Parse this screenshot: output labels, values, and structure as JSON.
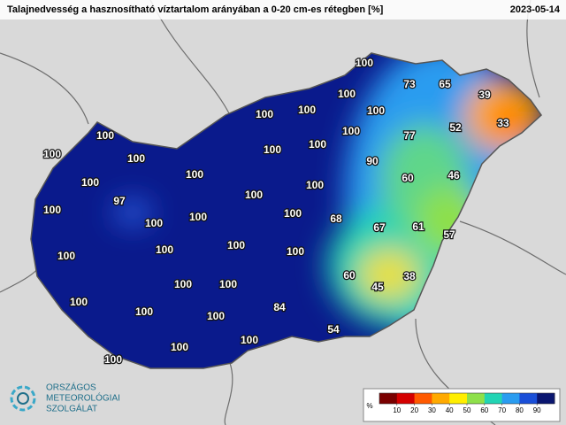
{
  "header": {
    "title": "Talajnedvesség a hasznosítható víztartalom arányában a 0-20 cm-es rétegben [%]",
    "date": "2023-05-14"
  },
  "stations": [
    100,
    73,
    65,
    39,
    100,
    100,
    100,
    100,
    52,
    33,
    100,
    100,
    77,
    100,
    100,
    100,
    100,
    90,
    100,
    100,
    60,
    46,
    100,
    97,
    100,
    100,
    100,
    100,
    100,
    68,
    67,
    61,
    57,
    100,
    100,
    100,
    100,
    60,
    38,
    45,
    100,
    100,
    100,
    84,
    100,
    100,
    54,
    100,
    100,
    100
  ],
  "colorbar": {
    "label": "%",
    "lim": [
      0,
      100
    ],
    "ticks": [
      10,
      20,
      30,
      40,
      50,
      60,
      70,
      80,
      90
    ],
    "colors": [
      "#7a0000",
      "#d40000",
      "#ff5a00",
      "#ffaa00",
      "#ffee00",
      "#8ee04a",
      "#22d4b4",
      "#2a9cf0",
      "#1a4fd8",
      "#0a1670"
    ]
  },
  "logo": {
    "lines": [
      "ORSZÁGOS",
      "METEOROLÓGIAI",
      "SZOLGÁLAT"
    ]
  }
}
